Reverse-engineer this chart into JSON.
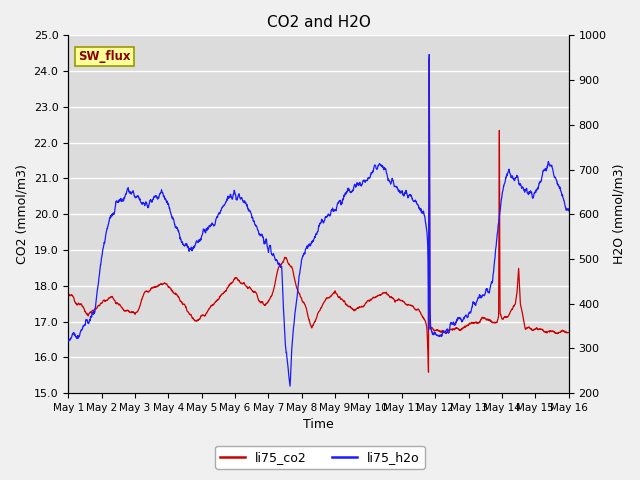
{
  "title": "CO2 and H2O",
  "xlabel": "Time",
  "ylabel_left": "CO2 (mmol/m3)",
  "ylabel_right": "H2O (mmol/m3)",
  "ylim_left": [
    15.0,
    25.0
  ],
  "ylim_right": [
    200,
    1000
  ],
  "yticks_left": [
    15.0,
    16.0,
    17.0,
    18.0,
    19.0,
    20.0,
    21.0,
    22.0,
    23.0,
    24.0,
    25.0
  ],
  "yticks_right": [
    200,
    300,
    400,
    500,
    600,
    700,
    800,
    900,
    1000
  ],
  "xtick_labels": [
    "May 1",
    "May 2",
    "May 3",
    "May 4",
    "May 5",
    "May 6",
    "May 7",
    "May 8",
    "May 9",
    "May 10",
    "May 11",
    "May 12",
    "May 13",
    "May 14",
    "May 15",
    "May 16"
  ],
  "legend_labels": [
    "li75_co2",
    "li75_h2o"
  ],
  "legend_colors": [
    "#cc0000",
    "#1a1aff"
  ],
  "sw_flux_box_color": "#ffff99",
  "sw_flux_text_color": "#8b0000",
  "plot_bg_color": "#dcdcdc",
  "grid_color": "#ffffff",
  "fig_bg_color": "#f0f0f0",
  "co2_color": "#cc0000",
  "h2o_color": "#1a1aff",
  "n_points": 2000,
  "days": 15
}
